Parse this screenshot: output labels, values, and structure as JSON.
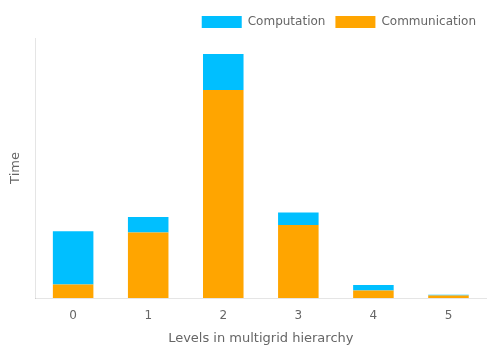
{
  "chart_data": {
    "type": "bar",
    "stacked": true,
    "xlabel": "Levels in multigrid hierarchy",
    "ylabel": "Time",
    "categories": [
      "0",
      "1",
      "2",
      "3",
      "4",
      "5"
    ],
    "series": [
      {
        "name": "Communication",
        "color": "#FFA500",
        "values": [
          0.055,
          0.265,
          0.84,
          0.295,
          0.03,
          0.01
        ]
      },
      {
        "name": "Computation",
        "color": "#00BFFF",
        "values": [
          0.215,
          0.062,
          0.145,
          0.05,
          0.022,
          0.003
        ]
      }
    ],
    "ylim": [
      0,
      1.05
    ],
    "grid": false,
    "legend": "upper right",
    "tick_labels": "x"
  }
}
